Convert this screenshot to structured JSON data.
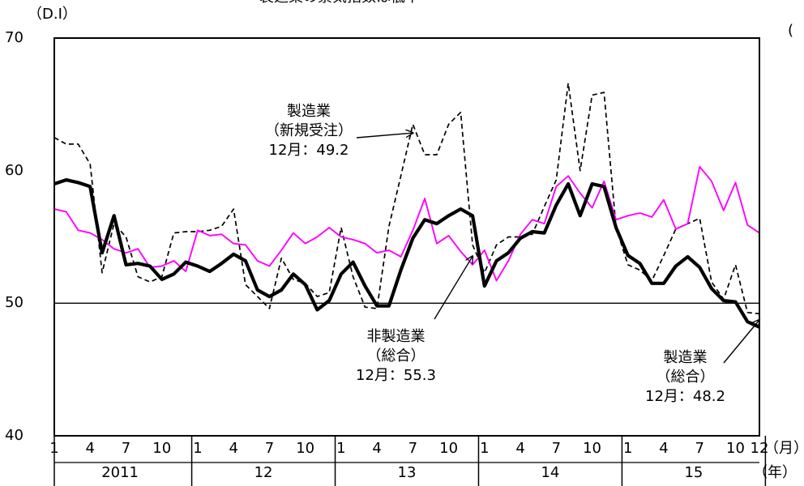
{
  "chart_data": {
    "type": "line",
    "title": "製造業の景気指数は低下",
    "unit_left": "（D.I）",
    "unit_right": "(",
    "ylim": [
      40,
      70
    ],
    "yticks": [
      40,
      50,
      60,
      70
    ],
    "reference_line": 50,
    "grid": false,
    "month_ticks": [
      "1",
      "4",
      "7",
      "10",
      "1",
      "4",
      "7",
      "10",
      "1",
      "4",
      "7",
      "10",
      "1",
      "4",
      "7",
      "10",
      "1",
      "4",
      "7",
      "10",
      "12"
    ],
    "month_unit": "（月）",
    "years": [
      "2011",
      "12",
      "13",
      "14",
      "15"
    ],
    "year_unit": "（年）",
    "x": [
      "2011-01",
      "2011-02",
      "2011-03",
      "2011-04",
      "2011-05",
      "2011-06",
      "2011-07",
      "2011-08",
      "2011-09",
      "2011-10",
      "2011-11",
      "2011-12",
      "2012-01",
      "2012-02",
      "2012-03",
      "2012-04",
      "2012-05",
      "2012-06",
      "2012-07",
      "2012-08",
      "2012-09",
      "2012-10",
      "2012-11",
      "2012-12",
      "2013-01",
      "2013-02",
      "2013-03",
      "2013-04",
      "2013-05",
      "2013-06",
      "2013-07",
      "2013-08",
      "2013-09",
      "2013-10",
      "2013-11",
      "2013-12",
      "2014-01",
      "2014-02",
      "2014-03",
      "2014-04",
      "2014-05",
      "2014-06",
      "2014-07",
      "2014-08",
      "2014-09",
      "2014-10",
      "2014-11",
      "2014-12",
      "2015-01",
      "2015-02",
      "2015-03",
      "2015-04",
      "2015-05",
      "2015-06",
      "2015-07",
      "2015-08",
      "2015-09",
      "2015-10",
      "2015-11",
      "2015-12"
    ],
    "series": [
      {
        "name": "製造業（総合）",
        "style": "solid-thick",
        "color": "#000000",
        "values": [
          59.0,
          59.3,
          59.1,
          58.8,
          53.8,
          56.6,
          52.9,
          53.0,
          52.8,
          51.8,
          52.2,
          53.1,
          52.8,
          52.4,
          53.0,
          53.7,
          53.2,
          51.0,
          50.5,
          51.0,
          52.2,
          51.4,
          49.5,
          50.2,
          52.2,
          53.1,
          51.3,
          49.8,
          49.8,
          52.5,
          54.9,
          56.3,
          56.0,
          56.6,
          57.1,
          56.6,
          51.3,
          53.2,
          53.8,
          54.9,
          55.4,
          55.3,
          57.4,
          59.0,
          56.6,
          59.0,
          58.8,
          55.7,
          53.6,
          53.0,
          51.5,
          51.5,
          52.8,
          53.5,
          52.7,
          51.1,
          50.2,
          50.1,
          48.6,
          48.2
        ]
      },
      {
        "name": "製造業（新規受注）",
        "style": "dashed",
        "color": "#000000",
        "values": [
          62.5,
          62.0,
          62.0,
          60.5,
          52.3,
          56.0,
          55.0,
          52.0,
          51.6,
          52.0,
          55.3,
          55.4,
          55.4,
          55.5,
          55.8,
          57.1,
          51.4,
          50.5,
          49.6,
          53.4,
          51.8,
          51.5,
          50.5,
          50.8,
          55.7,
          52.0,
          49.7,
          49.6,
          55.8,
          59.6,
          63.5,
          61.2,
          61.2,
          63.5,
          64.4,
          54.4,
          52.3,
          54.4,
          55.0,
          55.0,
          55.2,
          57.3,
          59.3,
          66.6,
          60.0,
          65.7,
          65.9,
          55.7,
          52.9,
          52.5,
          51.7,
          53.6,
          55.6,
          56.0,
          56.4,
          51.6,
          50.3,
          52.9,
          49.3,
          49.2
        ]
      },
      {
        "name": "非製造業（総合）",
        "style": "solid",
        "color": "#ff00ff",
        "values": [
          57.1,
          56.9,
          55.5,
          55.3,
          54.8,
          54.1,
          53.8,
          54.1,
          52.7,
          52.8,
          53.2,
          52.4,
          55.5,
          55.1,
          55.2,
          54.5,
          54.4,
          53.2,
          52.8,
          54.0,
          55.3,
          54.5,
          55.0,
          55.7,
          55.0,
          54.8,
          54.5,
          53.8,
          54.0,
          53.5,
          55.5,
          57.9,
          54.5,
          55.1,
          53.9,
          52.9,
          54.0,
          51.7,
          53.2,
          55.2,
          56.3,
          56.0,
          58.8,
          59.6,
          58.3,
          57.2,
          59.2,
          56.3,
          56.6,
          56.8,
          56.5,
          57.8,
          55.6,
          56.0,
          60.3,
          59.2,
          57.0,
          59.1,
          55.9,
          55.3
        ]
      }
    ],
    "annotations": [
      {
        "lines": [
          "製造業",
          "（新規受注）",
          "12月：49.2"
        ]
      },
      {
        "lines": [
          "非製造業",
          "（総合）",
          "12月：55.3"
        ]
      },
      {
        "lines": [
          "製造業",
          "（総合）",
          "12月：48.2"
        ]
      }
    ]
  }
}
